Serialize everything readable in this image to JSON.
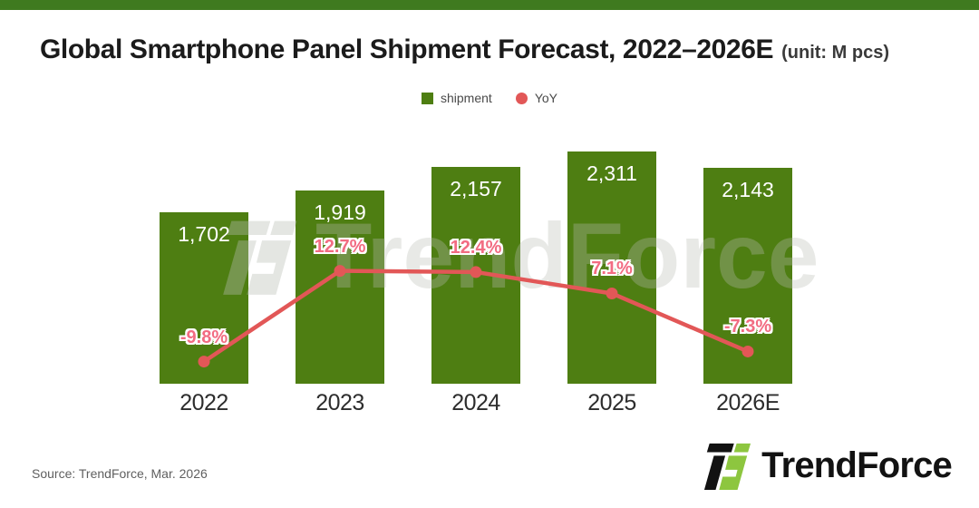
{
  "page": {
    "banner_color": "#3f7a1f"
  },
  "header": {
    "title": "Global Smartphone Panel Shipment Forecast, 2022–2026E",
    "unit": "(unit: M pcs)"
  },
  "legend": {
    "items": [
      {
        "label": "shipment",
        "swatch": "square",
        "color": "#4e7e12"
      },
      {
        "label": "YoY",
        "swatch": "circle",
        "color": "#e25757"
      }
    ]
  },
  "chart_data": {
    "type": "combo",
    "title": "Global Smartphone Panel Shipment Forecast, 2022–2026E",
    "unit": "M pcs",
    "categories": [
      "2022",
      "2023",
      "2024",
      "2025",
      "2026E"
    ],
    "series": [
      {
        "name": "shipment",
        "type": "bar",
        "values": [
          1702,
          1919,
          2157,
          2311,
          2143
        ],
        "labels": [
          "1,702",
          "1,919",
          "2,157",
          "2,311",
          "2,143"
        ],
        "color": "#4e7e12",
        "ylim": [
          0,
          2550
        ]
      },
      {
        "name": "YoY",
        "type": "line",
        "values": [
          -9.8,
          12.7,
          12.4,
          7.1,
          -7.3
        ],
        "labels": [
          "-9.8%",
          "12.7%",
          "12.4%",
          "7.1%",
          "-7.3%"
        ],
        "color": "#e25757",
        "label_color": "#f26c82",
        "ylim": [
          -15.3,
          48.4
        ]
      }
    ],
    "legend_position": "top-center",
    "grid": false
  },
  "watermark": {
    "text": "TrendForce"
  },
  "footer": {
    "source": "Source: TrendForce, Mar. 2026",
    "logo_text": "TrendForce",
    "logo_green": "#8dc63f",
    "logo_black": "#121212"
  }
}
